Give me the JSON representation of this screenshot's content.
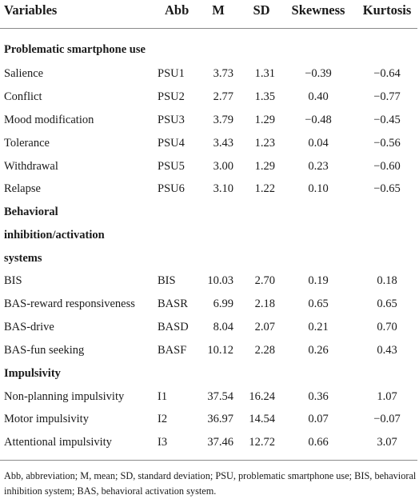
{
  "table": {
    "headers": {
      "variables": "Variables",
      "abb": "Abb",
      "m": "M",
      "sd": "SD",
      "skewness": "Skewness",
      "kurtosis": "Kurtosis"
    },
    "sections": [
      {
        "title": "Problematic smartphone use",
        "rows": [
          {
            "variable": "Salience",
            "abb": "PSU1",
            "m": "3.73",
            "sd": "1.31",
            "skewness": "−0.39",
            "kurtosis": "−0.64"
          },
          {
            "variable": "Conflict",
            "abb": "PSU2",
            "m": "2.77",
            "sd": "1.35",
            "skewness": "0.40",
            "kurtosis": "−0.77"
          },
          {
            "variable": "Mood modification",
            "abb": "PSU3",
            "m": "3.79",
            "sd": "1.29",
            "skewness": "−0.48",
            "kurtosis": "−0.45"
          },
          {
            "variable": "Tolerance",
            "abb": "PSU4",
            "m": "3.43",
            "sd": "1.23",
            "skewness": "0.04",
            "kurtosis": "−0.56"
          },
          {
            "variable": "Withdrawal",
            "abb": "PSU5",
            "m": "3.00",
            "sd": "1.29",
            "skewness": "0.23",
            "kurtosis": "−0.60"
          },
          {
            "variable": "Relapse",
            "abb": "PSU6",
            "m": "3.10",
            "sd": "1.22",
            "skewness": "0.10",
            "kurtosis": "−0.65"
          }
        ]
      },
      {
        "title_lines": [
          "Behavioral",
          "inhibition/activation",
          "systems"
        ],
        "rows": [
          {
            "variable": "BIS",
            "abb": "BIS",
            "m": "10.03",
            "sd": "2.70",
            "skewness": "0.19",
            "kurtosis": "0.18"
          },
          {
            "variable": "BAS-reward responsiveness",
            "abb": "BASR",
            "m": "6.99",
            "sd": "2.18",
            "skewness": "0.65",
            "kurtosis": "0.65"
          },
          {
            "variable": "BAS-drive",
            "abb": "BASD",
            "m": "8.04",
            "sd": "2.07",
            "skewness": "0.21",
            "kurtosis": "0.70"
          },
          {
            "variable": "BAS-fun seeking",
            "abb": "BASF",
            "m": "10.12",
            "sd": "2.28",
            "skewness": "0.26",
            "kurtosis": "0.43"
          }
        ]
      },
      {
        "title": "Impulsivity",
        "rows": [
          {
            "variable": "Non-planning impulsivity",
            "abb": "I1",
            "m": "37.54",
            "sd": "16.24",
            "skewness": "0.36",
            "kurtosis": "1.07"
          },
          {
            "variable": "Motor impulsivity",
            "abb": "I2",
            "m": "36.97",
            "sd": "14.54",
            "skewness": "0.07",
            "kurtosis": "−0.07"
          },
          {
            "variable": "Attentional impulsivity",
            "abb": "I3",
            "m": "37.46",
            "sd": "12.72",
            "skewness": "0.66",
            "kurtosis": "3.07"
          }
        ]
      }
    ],
    "footnote": "Abb, abbreviation; M, mean; SD, standard deviation; PSU, problematic smartphone use; BIS, behavioral inhibition system; BAS, behavioral activation system."
  }
}
